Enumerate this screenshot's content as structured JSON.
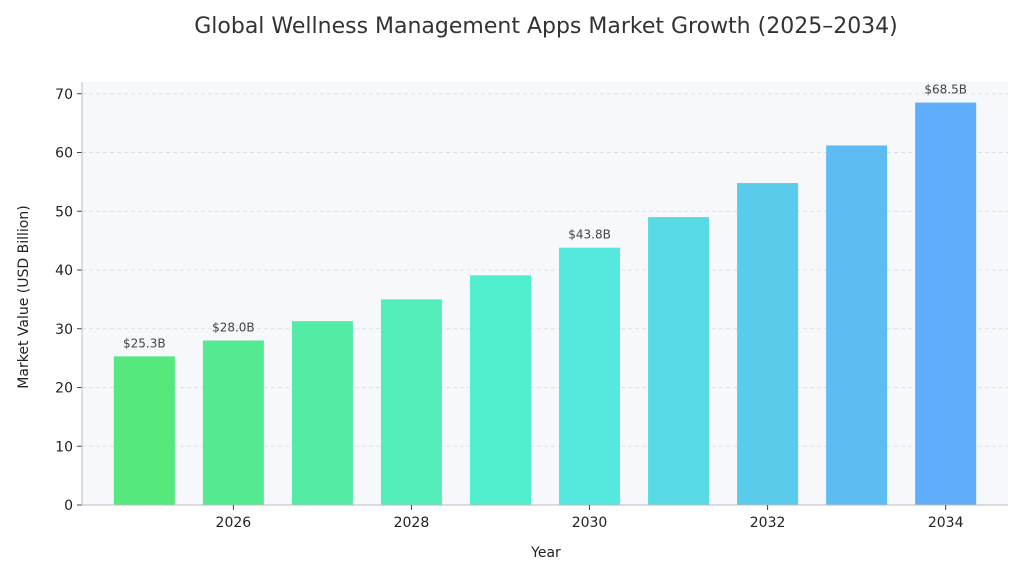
{
  "chart_data": {
    "type": "bar",
    "title": "Global Wellness Management Apps Market Growth (2025–2034)",
    "xlabel": "Year",
    "ylabel": "Market Value (USD Billion)",
    "categories": [
      2025,
      2026,
      2027,
      2028,
      2029,
      2030,
      2031,
      2032,
      2033,
      2034
    ],
    "values": [
      25.3,
      28.0,
      31.3,
      35.0,
      39.1,
      43.8,
      49.0,
      54.8,
      61.2,
      68.5
    ],
    "xticks": [
      "2026",
      "2028",
      "2030",
      "2032",
      "2034"
    ],
    "yticks": [
      "0",
      "10",
      "20",
      "30",
      "40",
      "50",
      "60",
      "70"
    ],
    "ylim": [
      0,
      72
    ],
    "data_labels": [
      {
        "category": 2025,
        "text": "$25.3B"
      },
      {
        "category": 2026,
        "text": "$28.0B"
      },
      {
        "category": 2030,
        "text": "$43.8B"
      },
      {
        "category": 2034,
        "text": "$68.5B"
      }
    ],
    "grid": true,
    "colors": {
      "gradient_start": "#55e87d",
      "gradient_mid": "#52f0d8",
      "gradient_end": "#60aefb",
      "plot_background": "#f7f8fb",
      "grid": "#dddfe3"
    }
  }
}
